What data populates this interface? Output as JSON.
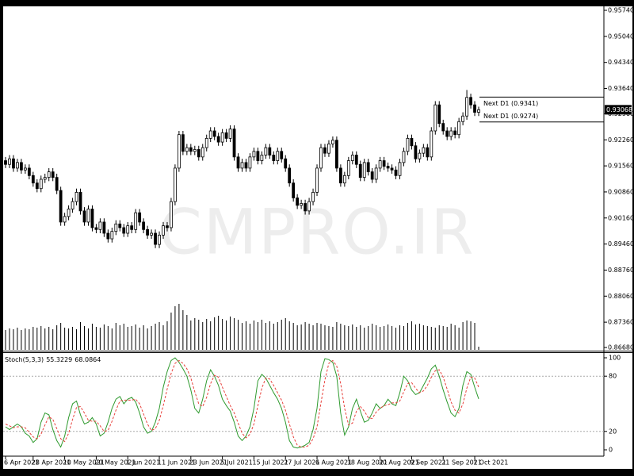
{
  "chart_data": {
    "type": "candlestick",
    "watermark": "CMPRO.IR",
    "categories": [
      "6 Apr 2021",
      null,
      null,
      null,
      null,
      null,
      null,
      "28 Apr 2021",
      null,
      null,
      null,
      null,
      null,
      null,
      null,
      "10 May 2021",
      null,
      null,
      null,
      null,
      null,
      null,
      null,
      "20 May 2021",
      null,
      null,
      null,
      null,
      null,
      null,
      null,
      "1 Jun 2021",
      null,
      null,
      null,
      null,
      null,
      null,
      null,
      "11 Jun 2021",
      null,
      null,
      null,
      null,
      null,
      null,
      null,
      "23 Jun 2021",
      null,
      null,
      null,
      null,
      null,
      null,
      null,
      "5 Jul 2021",
      null,
      null,
      null,
      null,
      null,
      null,
      null,
      "15 Jul 2021",
      null,
      null,
      null,
      null,
      null,
      null,
      null,
      "27 Jul 2021",
      null,
      null,
      null,
      null,
      null,
      null,
      null,
      "6 Aug 2021",
      null,
      null,
      null,
      null,
      null,
      null,
      null,
      "18 Aug 2021",
      null,
      null,
      null,
      null,
      null,
      null,
      null,
      "30 Aug 2021",
      null,
      null,
      null,
      null,
      null,
      null,
      null,
      "9 Sep 2021",
      null,
      null,
      null,
      null,
      null,
      null,
      null,
      "21 Sep 2021",
      null,
      null,
      null,
      null,
      null,
      null,
      null,
      "1 Oct 2021",
      null
    ],
    "open": [
      0.917,
      0.916,
      0.9175,
      0.915,
      0.9165,
      0.9145,
      0.915,
      0.913,
      0.911,
      0.9095,
      0.912,
      0.9125,
      0.914,
      0.9125,
      0.909,
      0.9005,
      0.902,
      0.904,
      0.906,
      0.9085,
      0.9035,
      0.9005,
      0.904,
      0.899,
      0.8985,
      0.9005,
      0.8975,
      0.896,
      0.898,
      0.9,
      0.899,
      0.8975,
      0.8995,
      0.8985,
      0.903,
      0.9005,
      0.8985,
      0.897,
      0.8975,
      0.8945,
      0.897,
      0.8995,
      0.899,
      0.906,
      0.915,
      0.924,
      0.9195,
      0.9205,
      0.9195,
      0.92,
      0.918,
      0.9205,
      0.923,
      0.925,
      0.9235,
      0.922,
      0.9245,
      0.923,
      0.9255,
      0.918,
      0.915,
      0.9165,
      0.915,
      0.918,
      0.9195,
      0.917,
      0.9185,
      0.9205,
      0.9185,
      0.917,
      0.9195,
      0.9175,
      0.915,
      0.911,
      0.907,
      0.905,
      0.9055,
      0.9035,
      0.906,
      0.9085,
      0.915,
      0.9205,
      0.919,
      0.9215,
      0.9225,
      0.915,
      0.911,
      0.913,
      0.917,
      0.9185,
      0.916,
      0.9125,
      0.9165,
      0.914,
      0.912,
      0.915,
      0.917,
      0.9155,
      0.915,
      0.9145,
      0.913,
      0.9165,
      0.9195,
      0.923,
      0.921,
      0.9175,
      0.919,
      0.9205,
      0.918,
      0.925,
      0.932,
      0.927,
      0.925,
      0.9235,
      0.925,
      0.924,
      0.9275,
      0.929,
      0.934,
      0.932,
      0.93
    ],
    "high": [
      0.918,
      0.9185,
      0.9185,
      0.9175,
      0.9175,
      0.916,
      0.916,
      0.914,
      0.912,
      0.913,
      0.9135,
      0.915,
      0.915,
      0.9135,
      0.91,
      0.903,
      0.905,
      0.907,
      0.9095,
      0.9095,
      0.9045,
      0.905,
      0.905,
      0.9,
      0.9015,
      0.9015,
      0.8985,
      0.899,
      0.901,
      0.901,
      0.9,
      0.9005,
      0.9005,
      0.904,
      0.904,
      0.9015,
      0.8995,
      0.8985,
      0.8985,
      0.898,
      0.9005,
      0.9005,
      0.907,
      0.916,
      0.925,
      0.925,
      0.9215,
      0.9215,
      0.921,
      0.921,
      0.9215,
      0.924,
      0.926,
      0.926,
      0.9245,
      0.9255,
      0.9255,
      0.9265,
      0.9265,
      0.919,
      0.9175,
      0.9175,
      0.919,
      0.9205,
      0.9205,
      0.9195,
      0.9215,
      0.9215,
      0.9195,
      0.9205,
      0.9205,
      0.9185,
      0.916,
      0.912,
      0.908,
      0.9065,
      0.9065,
      0.907,
      0.9095,
      0.916,
      0.9215,
      0.9215,
      0.9225,
      0.9235,
      0.9235,
      0.916,
      0.914,
      0.918,
      0.9195,
      0.9195,
      0.917,
      0.9175,
      0.9175,
      0.915,
      0.916,
      0.918,
      0.918,
      0.9165,
      0.916,
      0.9155,
      0.9175,
      0.9205,
      0.924,
      0.924,
      0.922,
      0.92,
      0.9215,
      0.9215,
      0.926,
      0.933,
      0.933,
      0.928,
      0.926,
      0.926,
      0.926,
      0.9285,
      0.93,
      0.936,
      0.935,
      0.933,
      0.9315
    ],
    "low": [
      0.915,
      0.915,
      0.914,
      0.914,
      0.9135,
      0.9135,
      0.912,
      0.91,
      0.9085,
      0.9085,
      0.911,
      0.9115,
      0.9115,
      0.908,
      0.8995,
      0.8995,
      0.901,
      0.903,
      0.905,
      0.9025,
      0.8995,
      0.8995,
      0.898,
      0.8975,
      0.8975,
      0.8965,
      0.895,
      0.895,
      0.897,
      0.898,
      0.8965,
      0.8965,
      0.8975,
      0.8975,
      0.8995,
      0.8975,
      0.896,
      0.896,
      0.8935,
      0.8935,
      0.896,
      0.898,
      0.898,
      0.905,
      0.914,
      0.9185,
      0.9185,
      0.9185,
      0.9185,
      0.917,
      0.917,
      0.9195,
      0.922,
      0.9225,
      0.921,
      0.921,
      0.922,
      0.922,
      0.917,
      0.914,
      0.914,
      0.914,
      0.914,
      0.917,
      0.916,
      0.916,
      0.9175,
      0.9175,
      0.916,
      0.916,
      0.9165,
      0.914,
      0.91,
      0.906,
      0.904,
      0.904,
      0.9025,
      0.9025,
      0.905,
      0.9075,
      0.914,
      0.918,
      0.918,
      0.9205,
      0.914,
      0.91,
      0.91,
      0.912,
      0.916,
      0.915,
      0.9115,
      0.9115,
      0.913,
      0.911,
      0.911,
      0.914,
      0.9145,
      0.914,
      0.9135,
      0.912,
      0.912,
      0.9155,
      0.9185,
      0.92,
      0.9165,
      0.9165,
      0.918,
      0.917,
      0.917,
      0.924,
      0.926,
      0.924,
      0.9225,
      0.9225,
      0.923,
      0.923,
      0.9265,
      0.928,
      0.931,
      0.929,
      0.929
    ],
    "close": [
      0.916,
      0.9175,
      0.915,
      0.9165,
      0.9145,
      0.915,
      0.913,
      0.911,
      0.9095,
      0.912,
      0.9125,
      0.914,
      0.9125,
      0.909,
      0.9005,
      0.902,
      0.904,
      0.906,
      0.9085,
      0.9035,
      0.9005,
      0.904,
      0.899,
      0.8985,
      0.9005,
      0.8975,
      0.896,
      0.898,
      0.9,
      0.899,
      0.8975,
      0.8995,
      0.8985,
      0.903,
      0.9005,
      0.8985,
      0.897,
      0.8975,
      0.8945,
      0.897,
      0.8995,
      0.899,
      0.906,
      0.915,
      0.924,
      0.9195,
      0.9205,
      0.9195,
      0.92,
      0.918,
      0.9205,
      0.923,
      0.925,
      0.9235,
      0.922,
      0.9245,
      0.923,
      0.9255,
      0.918,
      0.915,
      0.9165,
      0.915,
      0.918,
      0.9195,
      0.917,
      0.9185,
      0.9205,
      0.9185,
      0.917,
      0.9195,
      0.9175,
      0.915,
      0.911,
      0.907,
      0.905,
      0.9055,
      0.9035,
      0.906,
      0.9085,
      0.915,
      0.9205,
      0.919,
      0.9215,
      0.9225,
      0.915,
      0.911,
      0.913,
      0.917,
      0.9185,
      0.916,
      0.9125,
      0.9165,
      0.914,
      0.912,
      0.915,
      0.917,
      0.9155,
      0.915,
      0.9145,
      0.913,
      0.9165,
      0.9195,
      0.923,
      0.921,
      0.9175,
      0.919,
      0.9205,
      0.918,
      0.925,
      0.932,
      0.927,
      0.925,
      0.9235,
      0.925,
      0.924,
      0.9275,
      0.929,
      0.934,
      0.932,
      0.93,
      0.93068
    ],
    "up_color": "#ffffff",
    "down_color": "#000000",
    "volume": [
      25,
      27,
      26,
      28,
      25,
      27,
      26,
      29,
      28,
      30,
      27,
      29,
      26,
      31,
      34,
      28,
      27,
      29,
      26,
      35,
      30,
      27,
      33,
      29,
      28,
      32,
      30,
      27,
      34,
      31,
      33,
      29,
      30,
      32,
      28,
      31,
      27,
      30,
      33,
      35,
      31,
      36,
      47,
      55,
      58,
      50,
      44,
      37,
      40,
      38,
      35,
      39,
      36,
      41,
      43,
      39,
      37,
      42,
      40,
      38,
      34,
      36,
      33,
      37,
      35,
      38,
      34,
      36,
      33,
      35,
      38,
      40,
      36,
      34,
      31,
      32,
      35,
      33,
      31,
      34,
      33,
      31,
      30,
      29,
      35,
      33,
      31,
      30,
      32,
      29,
      31,
      28,
      30,
      33,
      31,
      29,
      30,
      32,
      30,
      28,
      31,
      30,
      34,
      36,
      32,
      33,
      31,
      30,
      29,
      28,
      31,
      30,
      29,
      33,
      31,
      28,
      35,
      37,
      36,
      34,
      4
    ],
    "ylim": [
      0.86595,
      0.95847
    ],
    "yticks": [
      {
        "value": 0.9574,
        "label": "0.95740"
      },
      {
        "value": 0.9504,
        "label": "0.95040"
      },
      {
        "value": 0.9434,
        "label": "0.94340"
      },
      {
        "value": 0.9364,
        "label": "0.93640"
      },
      {
        "value": 0.9296,
        "label": "0.92960"
      },
      {
        "value": 0.9226,
        "label": "0.92260"
      },
      {
        "value": 0.9156,
        "label": "0.91560"
      },
      {
        "value": 0.9086,
        "label": "0.90860"
      },
      {
        "value": 0.9016,
        "label": "0.90160"
      },
      {
        "value": 0.8946,
        "label": "0.89460"
      },
      {
        "value": 0.8876,
        "label": "0.88760"
      },
      {
        "value": 0.8806,
        "label": "0.88060"
      },
      {
        "value": 0.8736,
        "label": "0.87360"
      },
      {
        "value": 0.8668,
        "label": "0.86680"
      }
    ],
    "levels": [
      {
        "value": 0.9341,
        "label": "Next D1 (0.9341)"
      },
      {
        "value": 0.9274,
        "label": "Next D1 (0.9274)"
      }
    ],
    "last_price": 0.93068,
    "indicator": {
      "type": "line",
      "label": "Stoch(5,3,3)",
      "ylim": [
        -6.9,
        104.3
      ],
      "yticks": [
        100,
        80,
        20,
        0
      ],
      "levels": [
        80,
        20
      ],
      "series": [
        {
          "color": "#2e9a2e",
          "dash": false,
          "values": [
            25,
            22,
            25,
            28,
            25,
            18,
            15,
            8,
            12,
            30,
            40,
            38,
            22,
            10,
            3,
            15,
            35,
            50,
            53,
            38,
            28,
            30,
            35,
            28,
            15,
            18,
            30,
            45,
            55,
            58,
            50,
            55,
            57,
            52,
            40,
            25,
            18,
            20,
            30,
            45,
            68,
            85,
            97,
            100,
            95,
            88,
            80,
            65,
            45,
            40,
            55,
            75,
            87,
            80,
            70,
            55,
            48,
            42,
            30,
            15,
            10,
            15,
            25,
            45,
            75,
            82,
            78,
            70,
            62,
            55,
            45,
            30,
            10,
            3,
            2,
            3,
            5,
            8,
            22,
            45,
            85,
            99,
            98,
            95,
            80,
            40,
            16,
            25,
            45,
            55,
            42,
            30,
            32,
            40,
            50,
            45,
            48,
            55,
            50,
            48,
            62,
            80,
            75,
            65,
            60,
            62,
            70,
            78,
            88,
            92,
            80,
            65,
            52,
            40,
            36,
            45,
            70,
            85,
            82,
            68,
            55.3229
          ]
        },
        {
          "color": "#e8413c",
          "dash": true,
          "values": [
            28,
            26,
            24,
            25,
            25,
            24,
            19,
            14,
            12,
            17,
            27,
            36,
            33,
            23,
            12,
            9,
            18,
            33,
            46,
            47,
            40,
            32,
            31,
            31,
            26,
            20,
            21,
            31,
            43,
            53,
            54,
            54,
            54,
            55,
            50,
            39,
            28,
            21,
            23,
            32,
            48,
            66,
            83,
            94,
            97,
            94,
            88,
            78,
            63,
            50,
            47,
            57,
            72,
            81,
            79,
            68,
            58,
            48,
            40,
            29,
            18,
            13,
            17,
            28,
            48,
            67,
            78,
            77,
            70,
            62,
            54,
            43,
            28,
            14,
            5,
            3,
            3,
            5,
            12,
            25,
            51,
            76,
            94,
            97,
            91,
            72,
            45,
            27,
            29,
            42,
            47,
            42,
            35,
            34,
            41,
            45,
            48,
            49,
            51,
            51,
            53,
            63,
            72,
            73,
            67,
            62,
            64,
            70,
            79,
            86,
            87,
            79,
            66,
            52,
            43,
            40,
            50,
            67,
            79,
            78,
            68.0864
          ]
        }
      ]
    }
  }
}
